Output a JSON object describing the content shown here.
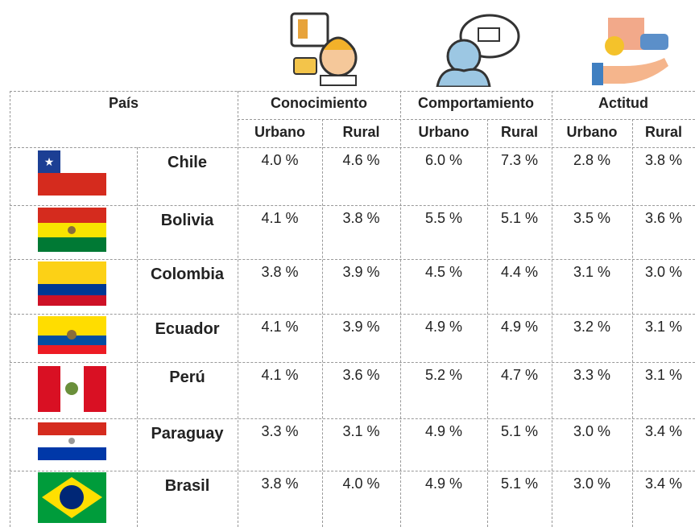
{
  "header": {
    "country": "País",
    "groups": [
      "Conocimiento",
      "Comportamiento",
      "Actitud"
    ],
    "subheaders": [
      "Urbano",
      "Rural",
      "Urbano",
      "Rural",
      "Urbano",
      "Rural"
    ]
  },
  "table": {
    "rows": [
      {
        "country": "Chile",
        "values": [
          "4.0 %",
          "4.6 %",
          "6.0 %",
          "7.3 %",
          "2.8 %",
          "3.8 %"
        ]
      },
      {
        "country": "Bolivia",
        "values": [
          "4.1 %",
          "3.8 %",
          "5.5 %",
          "5.1 %",
          "3.5 %",
          "3.6 %"
        ]
      },
      {
        "country": "Colombia",
        "values": [
          "3.8 %",
          "3.9 %",
          "4.5 %",
          "4.4 %",
          "3.1 %",
          "3.0 %"
        ]
      },
      {
        "country": "Ecuador",
        "values": [
          "4.1 %",
          "3.9 %",
          "4.9 %",
          "4.9 %",
          "3.2 %",
          "3.1 %"
        ]
      },
      {
        "country": "Perú",
        "values": [
          "4.1 %",
          "3.6 %",
          "5.2 %",
          "4.7 %",
          "3.3 %",
          "3.1 %"
        ]
      },
      {
        "country": "Paraguay",
        "values": [
          "3.3 %",
          "3.1 %",
          "4.9 %",
          "5.1 %",
          "3.0 %",
          "3.4 %"
        ]
      },
      {
        "country": "Brasil",
        "values": [
          "3.8 %",
          "4.0 %",
          "4.9 %",
          "5.1 %",
          "3.0 %",
          "3.4 %"
        ]
      }
    ]
  }
}
